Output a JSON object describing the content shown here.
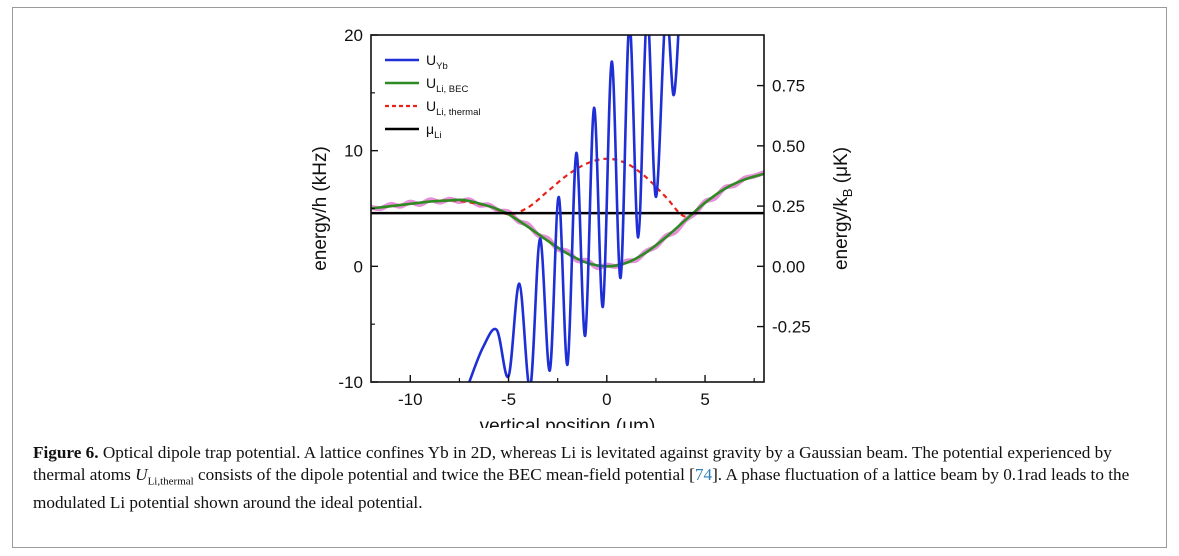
{
  "chart_data": {
    "type": "line",
    "xlabel": "vertical position (μm)",
    "ylabel": "energy/h (kHz)",
    "ylabel_right": "energy/k",
    "ylabel_right_sub": "B",
    "ylabel_right_unit": " (μK)",
    "xlim": [
      -12,
      8
    ],
    "ylim": [
      -10,
      20
    ],
    "ylim_right": [
      -0.48,
      0.96
    ],
    "x_ticks": [
      -10,
      -5,
      0,
      5
    ],
    "y_ticks": [
      -10,
      0,
      10,
      20
    ],
    "y_right_ticks": [
      -0.25,
      0.0,
      0.25,
      0.5,
      0.75
    ],
    "y_right_tick_labels": [
      "-0.25",
      "0.00",
      "0.25",
      "0.50",
      "0.75"
    ],
    "legend_position": "top-left",
    "grid": false,
    "series": [
      {
        "name": "U",
        "name_sub": "Yb",
        "color": "#1f2fd6",
        "style": "solid",
        "x": [
          -7.0,
          -6.3,
          -5.6,
          -5.0,
          -4.45,
          -3.9,
          -3.4,
          -2.9,
          -2.45,
          -2.0,
          -1.55,
          -1.1,
          -0.65,
          -0.2,
          0.25,
          0.7,
          1.15,
          1.6,
          2.05,
          2.5,
          3.0,
          3.4,
          3.7
        ],
        "y": [
          -10,
          -7.0,
          -5.5,
          -9.5,
          -1.5,
          -10.5,
          2.4,
          -9.0,
          6.0,
          -8.5,
          9.8,
          -6.0,
          13.7,
          -3.5,
          17.7,
          -1.0,
          21.0,
          2.5,
          22.0,
          6.0,
          22.0,
          14.8,
          22.0
        ]
      },
      {
        "name": "U",
        "name_sub": "Li, BEC",
        "color": "#2e8b22",
        "style": "solid",
        "x": [
          -12,
          -11,
          -10,
          -9,
          -8,
          -7.5,
          -7,
          -6,
          -5.5,
          -5,
          -4,
          -3,
          -2,
          -1,
          0,
          1,
          2,
          3,
          4,
          5,
          6,
          7,
          8
        ],
        "y": [
          5.0,
          5.2,
          5.4,
          5.6,
          5.7,
          5.75,
          5.65,
          5.2,
          4.9,
          4.5,
          3.4,
          2.2,
          1.1,
          0.3,
          0.0,
          0.3,
          1.2,
          2.5,
          4.0,
          5.5,
          6.7,
          7.5,
          8.0
        ]
      },
      {
        "name": "U",
        "name_sub": "Li, thermal",
        "color": "#e8221a",
        "style": "dashed",
        "x": [
          -12,
          -10,
          -8,
          -6,
          -5,
          -4,
          -3,
          -2,
          -1,
          0,
          1,
          2,
          3,
          4,
          5,
          6,
          7,
          8
        ],
        "y": [
          5.0,
          5.4,
          5.7,
          5.2,
          4.5,
          5.1,
          6.5,
          7.9,
          8.9,
          9.3,
          8.9,
          7.7,
          6.0,
          4.3,
          5.5,
          6.7,
          7.5,
          8.0
        ]
      },
      {
        "name": "μ",
        "name_sub": "Li",
        "color": "#000000",
        "style": "solid",
        "x": [
          -12,
          8
        ],
        "y": [
          4.6,
          4.6
        ]
      }
    ],
    "modulated_potential": {
      "color": "#e58fd8",
      "x": [
        -12,
        -11.5,
        -11,
        -10.5,
        -10,
        -9.5,
        -9,
        -8.5,
        -8,
        -7.5,
        -7,
        -6.5,
        -6,
        -5.5,
        -5,
        -4.5,
        -4,
        -3.5,
        -3,
        -2.5,
        -2,
        -1.5,
        -1,
        -0.5,
        0,
        0.5,
        1,
        1.5,
        2,
        2.5,
        3,
        3.5,
        4,
        4.5,
        5,
        5.5,
        6,
        6.5,
        7,
        7.5,
        8
      ],
      "y": [
        5.1,
        5.0,
        5.35,
        5.2,
        5.55,
        5.35,
        5.75,
        5.55,
        5.8,
        5.6,
        5.75,
        5.3,
        5.3,
        4.8,
        4.7,
        3.9,
        3.6,
        2.7,
        2.4,
        1.5,
        1.3,
        0.5,
        0.5,
        -0.1,
        0.1,
        0.0,
        0.45,
        0.55,
        1.3,
        1.7,
        2.6,
        3.0,
        4.0,
        4.6,
        5.6,
        5.9,
        6.8,
        7.0,
        7.6,
        7.8,
        8.1
      ]
    }
  },
  "caption": {
    "label": "Figure 6.",
    "text_1": " Optical dipole trap potential. A lattice confines Yb in 2D, whereas Li is levitated against gravity by a Gaussian beam. The potential experienced by thermal atoms ",
    "symbol": "U",
    "symbol_sub": "Li,thermal",
    "text_2": " consists of the dipole potential and twice the BEC mean-field potential [",
    "ref": "74",
    "text_3": "]. A phase fluctuation of a lattice beam by 0.1rad leads to the modulated Li potential shown around the ideal potential."
  }
}
